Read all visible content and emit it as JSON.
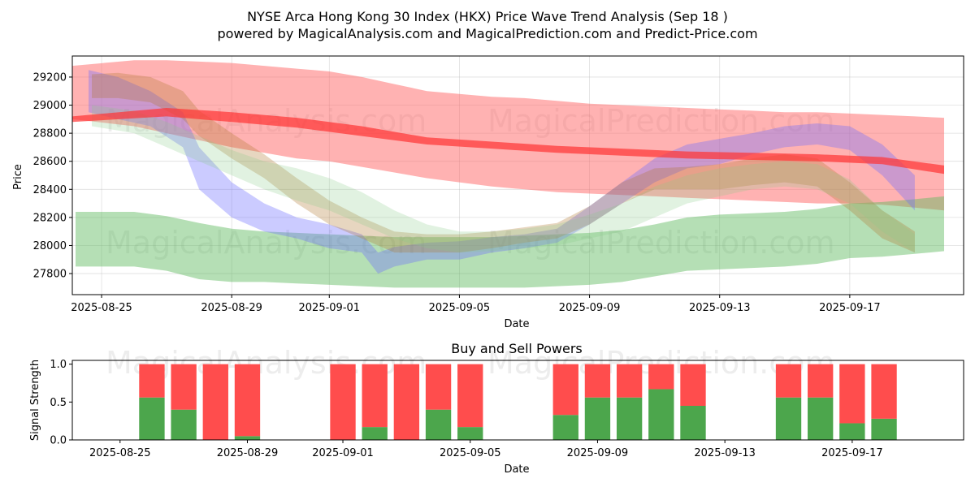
{
  "chart_data": [
    {
      "type": "area",
      "title_line1": "NYSE Arca Hong Kong 30 Index (HKX) Price Wave Trend Analysis (Sep 18 )",
      "title_line2": "powered by MagicalAnalysis.com and MagicalPrediction.com and Predict-Price.com",
      "xlabel": "Date",
      "ylabel": "Price",
      "xlim": [
        -0.9,
        26.5
      ],
      "ylim": [
        27650,
        29350
      ],
      "x_tick_labels": [
        "2025-08-25",
        "2025-08-29",
        "2025-09-01",
        "2025-09-05",
        "2025-09-09",
        "2025-09-13",
        "2025-09-17"
      ],
      "x_tick_positions": [
        0,
        4,
        7,
        11,
        15,
        19,
        23
      ],
      "y_ticks": [
        27800,
        28000,
        28200,
        28400,
        28600,
        28800,
        29000,
        29200
      ],
      "grid": true,
      "watermarks": [
        "MagicalAnalysis.com",
        "MagicalPrediction.com"
      ],
      "bands": [
        {
          "name": "upper red channel",
          "color": "#ff6666",
          "opacity": 0.5,
          "x": [
            -0.9,
            1,
            2,
            3,
            4,
            5,
            6,
            7,
            8,
            9,
            10,
            11,
            12,
            13,
            14,
            15,
            16,
            17,
            18,
            19,
            20,
            21,
            22,
            23,
            24,
            25,
            25.9
          ],
          "lower": [
            28900,
            28850,
            28800,
            28750,
            28700,
            28660,
            28620,
            28600,
            28560,
            28520,
            28480,
            28450,
            28420,
            28400,
            28380,
            28370,
            28360,
            28350,
            28340,
            28330,
            28320,
            28310,
            28300,
            28300,
            28290,
            28270,
            28250
          ],
          "upper": [
            29280,
            29320,
            29320,
            29310,
            29300,
            29280,
            29260,
            29240,
            29200,
            29150,
            29100,
            29080,
            29060,
            29050,
            29030,
            29010,
            29000,
            28990,
            28980,
            28970,
            28960,
            28950,
            28950,
            28940,
            28930,
            28920,
            28910
          ]
        },
        {
          "name": "green support channel",
          "color": "#5cb85c",
          "opacity": 0.45,
          "x": [
            -0.8,
            1,
            2,
            3,
            4,
            5,
            6,
            7,
            8,
            9,
            10,
            11,
            12,
            13,
            14,
            15,
            16,
            17,
            18,
            19,
            20,
            21,
            22,
            23,
            24,
            25,
            25.9
          ],
          "lower": [
            27850,
            27850,
            27820,
            27760,
            27740,
            27740,
            27730,
            27720,
            27710,
            27700,
            27700,
            27700,
            27700,
            27700,
            27710,
            27720,
            27740,
            27780,
            27820,
            27830,
            27840,
            27850,
            27870,
            27910,
            27920,
            27940,
            27960
          ],
          "upper": [
            28240,
            28240,
            28210,
            28160,
            28120,
            28100,
            28090,
            28080,
            28070,
            28060,
            28060,
            28060,
            28060,
            28070,
            28080,
            28090,
            28110,
            28150,
            28200,
            28220,
            28230,
            28240,
            28260,
            28300,
            28310,
            28330,
            28350
          ]
        },
        {
          "name": "blue wave",
          "color": "#6a6aff",
          "opacity": 0.35,
          "x": [
            -0.4,
            0.5,
            1.5,
            2.5,
            3,
            4,
            5,
            6,
            7,
            8,
            8.5,
            9,
            10,
            11,
            12,
            13,
            14,
            15,
            16,
            17,
            18,
            19,
            20,
            21,
            22,
            23,
            24,
            25
          ],
          "lower": [
            28950,
            28900,
            28850,
            28700,
            28400,
            28200,
            28100,
            28050,
            27980,
            27950,
            27800,
            27850,
            27900,
            27900,
            27950,
            27980,
            28020,
            28150,
            28300,
            28450,
            28550,
            28580,
            28650,
            28700,
            28720,
            28680,
            28500,
            28250
          ],
          "upper": [
            29250,
            29200,
            29100,
            28950,
            28700,
            28450,
            28300,
            28200,
            28150,
            28080,
            27950,
            27990,
            28020,
            28030,
            28060,
            28080,
            28120,
            28280,
            28450,
            28620,
            28720,
            28760,
            28800,
            28850,
            28870,
            28850,
            28720,
            28500
          ]
        },
        {
          "name": "brown wave",
          "color": "#b07830",
          "opacity": 0.3,
          "x": [
            -0.3,
            0.5,
            1.5,
            2.5,
            3,
            4,
            5,
            6,
            7,
            8,
            9,
            10,
            11,
            12,
            13,
            14,
            15,
            16,
            17,
            18,
            19,
            20,
            21,
            22,
            23,
            24,
            25
          ],
          "lower": [
            29050,
            29050,
            29020,
            28900,
            28780,
            28620,
            28480,
            28300,
            28150,
            28050,
            27950,
            27950,
            27950,
            27980,
            28020,
            28050,
            28150,
            28300,
            28400,
            28400,
            28400,
            28430,
            28450,
            28420,
            28250,
            28050,
            27950
          ],
          "upper": [
            29220,
            29230,
            29200,
            29100,
            28960,
            28800,
            28650,
            28480,
            28320,
            28200,
            28100,
            28080,
            28080,
            28100,
            28130,
            28160,
            28280,
            28450,
            28550,
            28560,
            28580,
            28620,
            28650,
            28620,
            28450,
            28250,
            28100
          ]
        },
        {
          "name": "light green wave",
          "color": "#88cc88",
          "opacity": 0.25,
          "x": [
            -0.3,
            1,
            2,
            3,
            4,
            5,
            6,
            7,
            8,
            9,
            10,
            11,
            12,
            13,
            14,
            15,
            16,
            17,
            18,
            19,
            20,
            21,
            22,
            23,
            24,
            25
          ],
          "lower": [
            28850,
            28800,
            28700,
            28600,
            28500,
            28400,
            28320,
            28250,
            28150,
            28050,
            27980,
            27950,
            27960,
            27980,
            28000,
            28050,
            28100,
            28200,
            28300,
            28350,
            28400,
            28420,
            28400,
            28300,
            28100,
            27950
          ],
          "upper": [
            29000,
            28960,
            28880,
            28780,
            28680,
            28600,
            28550,
            28480,
            28380,
            28250,
            28150,
            28100,
            28100,
            28120,
            28150,
            28220,
            28300,
            28420,
            28500,
            28550,
            28580,
            28600,
            28580,
            28470,
            28250,
            28080
          ]
        },
        {
          "name": "red trend line",
          "color": "#ff3333",
          "opacity": 0.7,
          "x": [
            -0.9,
            2,
            4,
            6,
            8,
            10,
            12,
            14,
            16,
            18,
            20,
            22,
            24,
            25.9
          ],
          "lower": [
            28880,
            28920,
            28880,
            28840,
            28780,
            28720,
            28690,
            28660,
            28640,
            28620,
            28610,
            28600,
            28580,
            28510
          ],
          "upper": [
            28920,
            28980,
            28950,
            28910,
            28850,
            28770,
            28740,
            28710,
            28690,
            28670,
            28660,
            28650,
            28630,
            28570
          ]
        }
      ]
    },
    {
      "type": "bar",
      "title": "Buy and Sell Powers",
      "xlabel": "Date",
      "ylabel": "Signal Strength",
      "ylim": [
        0,
        1.05
      ],
      "y_ticks": [
        0.0,
        0.5,
        1.0
      ],
      "y_tick_labels": [
        "0.0",
        "0.5",
        "1.0"
      ],
      "x_tick_labels": [
        "2025-08-25",
        "2025-08-29",
        "2025-09-01",
        "2025-09-05",
        "2025-09-09",
        "2025-09-13",
        "2025-09-17"
      ],
      "x_tick_positions": [
        0,
        4,
        7,
        11,
        15,
        19,
        23
      ],
      "xlim": [
        -1.5,
        26.5
      ],
      "buy_color": "#4ca64c",
      "sell_color": "#ff4d4d",
      "bars": [
        {
          "x": 1,
          "buy": 0.56,
          "sell": 0.44
        },
        {
          "x": 2,
          "buy": 0.4,
          "sell": 0.6
        },
        {
          "x": 3,
          "buy": 0.0,
          "sell": 1.0
        },
        {
          "x": 4,
          "buy": 0.05,
          "sell": 0.95
        },
        {
          "x": 7,
          "buy": 0.0,
          "sell": 1.0
        },
        {
          "x": 8,
          "buy": 0.17,
          "sell": 0.83
        },
        {
          "x": 9,
          "buy": 0.0,
          "sell": 1.0
        },
        {
          "x": 10,
          "buy": 0.4,
          "sell": 0.6
        },
        {
          "x": 11,
          "buy": 0.17,
          "sell": 0.83
        },
        {
          "x": 14,
          "buy": 0.33,
          "sell": 0.67
        },
        {
          "x": 15,
          "buy": 0.56,
          "sell": 0.44
        },
        {
          "x": 16,
          "buy": 0.56,
          "sell": 0.44
        },
        {
          "x": 17,
          "buy": 0.67,
          "sell": 0.33
        },
        {
          "x": 18,
          "buy": 0.45,
          "sell": 0.55
        },
        {
          "x": 21,
          "buy": 0.56,
          "sell": 0.44
        },
        {
          "x": 22,
          "buy": 0.56,
          "sell": 0.44
        },
        {
          "x": 23,
          "buy": 0.22,
          "sell": 0.78
        },
        {
          "x": 24,
          "buy": 0.28,
          "sell": 0.72
        }
      ],
      "watermarks": [
        "MagicalAnalysis.com",
        "MagicalPrediction.com"
      ]
    }
  ]
}
